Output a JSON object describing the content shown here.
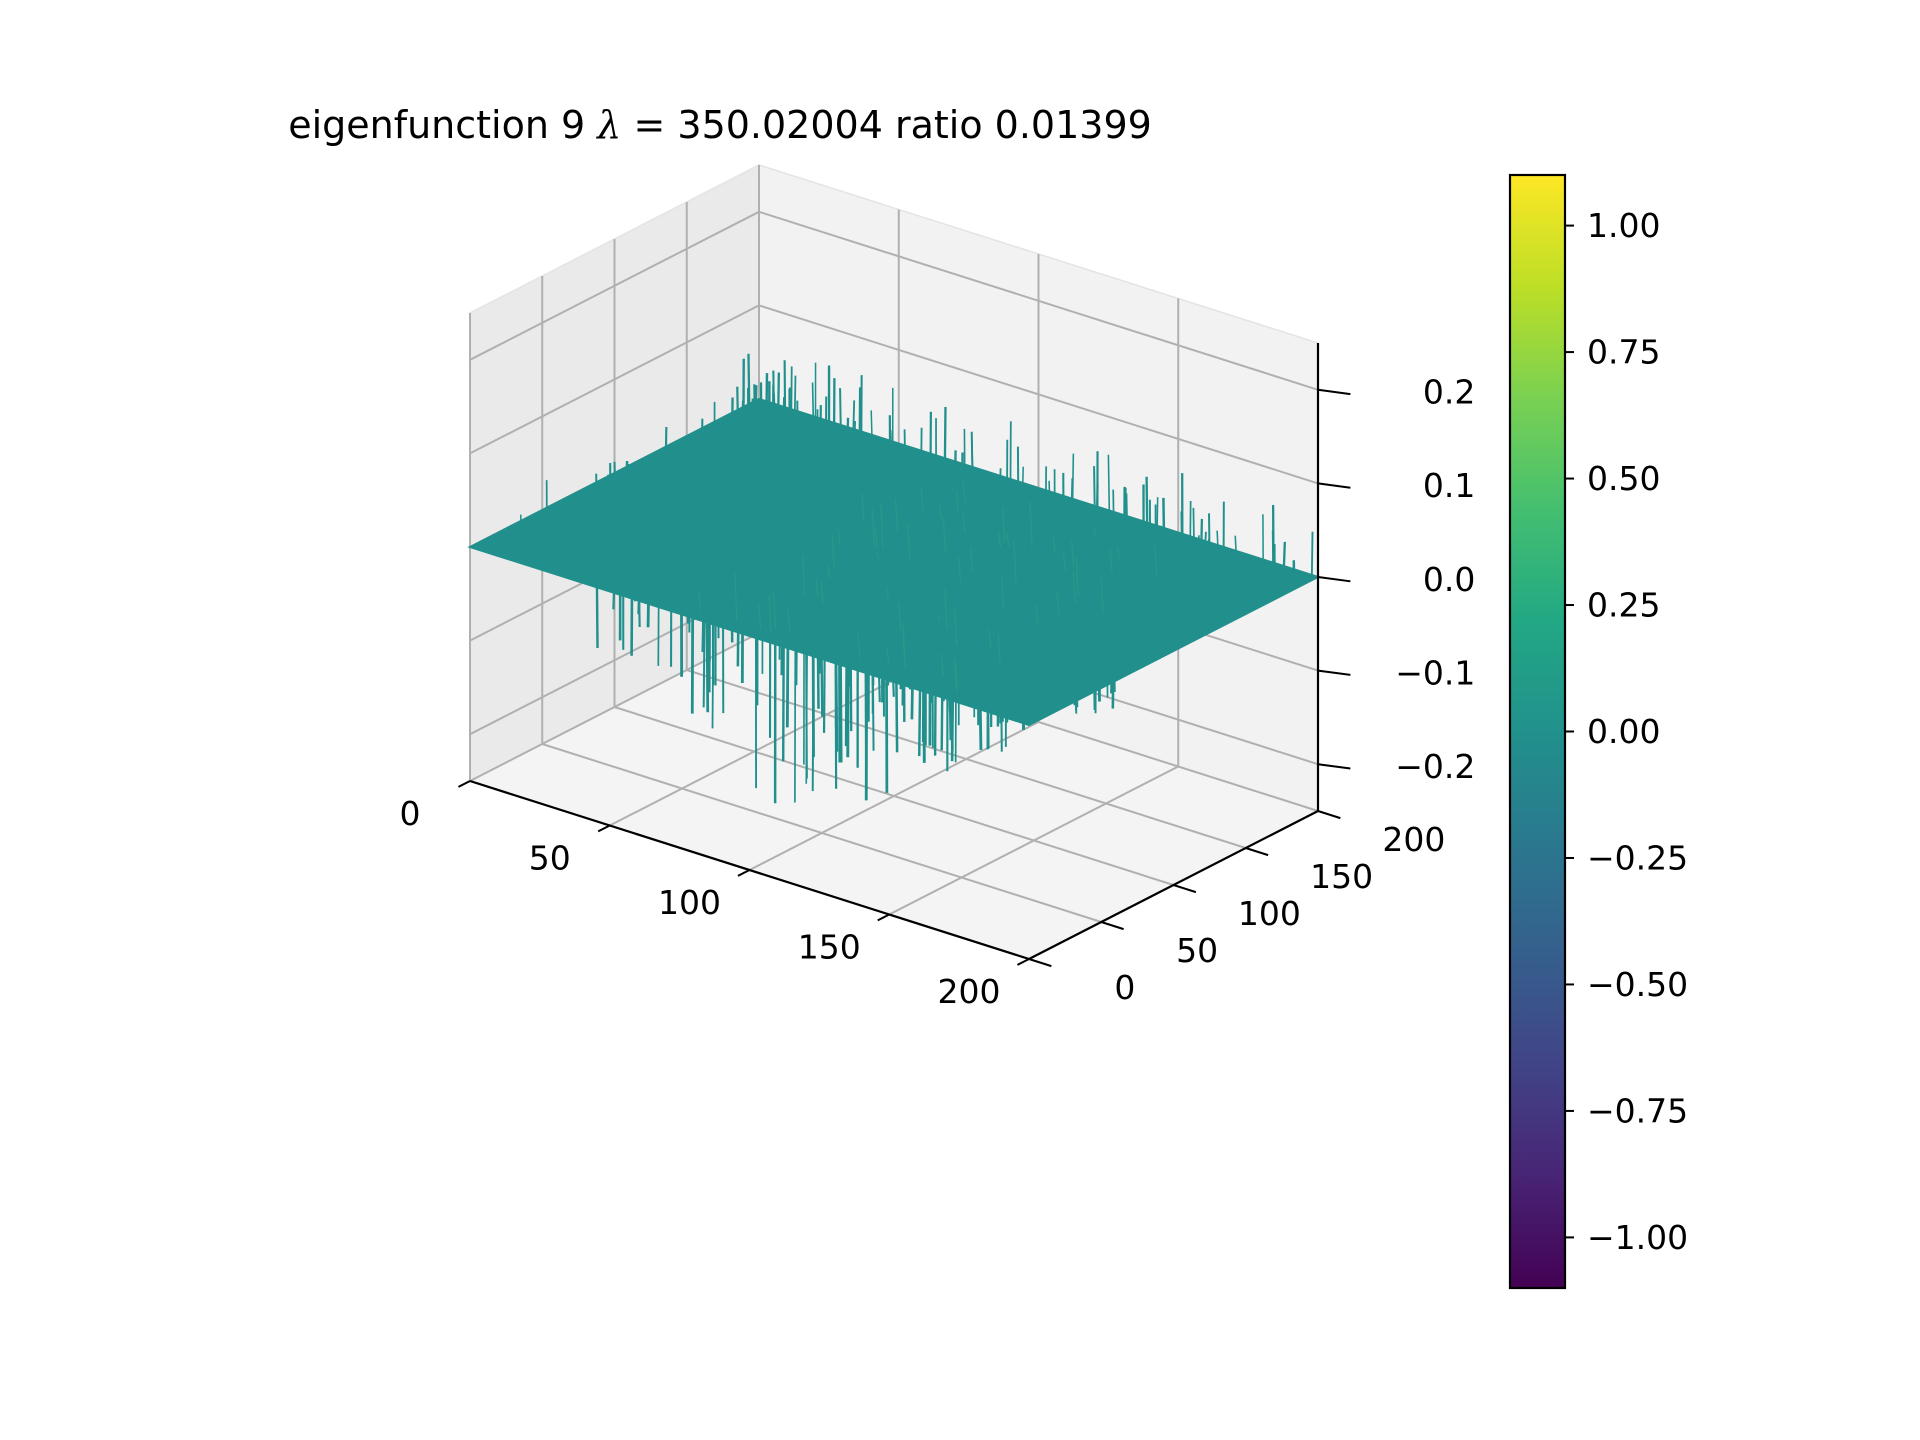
{
  "title": {
    "prefix": "eigenfunction 9  ",
    "symbol": "λ",
    "rest": " = 350.02004 ratio 0.01399"
  },
  "chart_data": {
    "type": "surface",
    "title": "eigenfunction 9  λ = 350.02004 ratio 0.01399",
    "x_range": [
      0,
      200
    ],
    "y_range": [
      0,
      200
    ],
    "z_range": [
      -0.25,
      0.25
    ],
    "x_ticks": [
      "0",
      "50",
      "100",
      "150",
      "200"
    ],
    "y_ticks": [
      "0",
      "50",
      "100",
      "150",
      "200"
    ],
    "z_ticks": [
      "−0.2",
      "−0.1",
      "0.0",
      "0.1",
      "0.2"
    ],
    "surface_base_value": 0.0,
    "surface_noise_amplitude": 0.15,
    "colormap": "viridis",
    "colorbar": {
      "range": [
        -1.1,
        1.1
      ],
      "ticks": [
        "1.00",
        "0.75",
        "0.50",
        "0.25",
        "0.00",
        "−0.25",
        "−0.50",
        "−0.75",
        "−1.00"
      ],
      "tick_values": [
        1.0,
        0.75,
        0.5,
        0.25,
        0.0,
        -0.25,
        -0.5,
        -0.75,
        -1.0
      ]
    },
    "grid": true,
    "colors": {
      "surface": "#21908d",
      "pane": "#f2f2f2",
      "grid": "#b0b0b0"
    }
  }
}
